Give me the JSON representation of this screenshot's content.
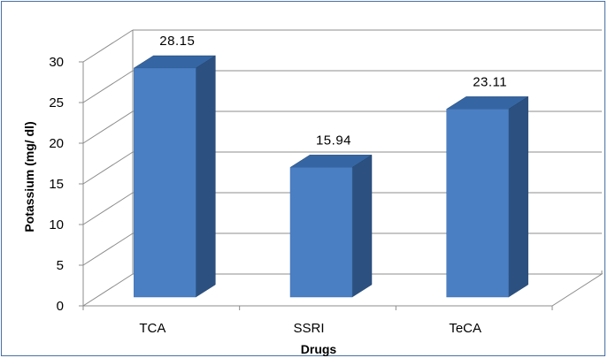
{
  "chart_data": {
    "type": "bar",
    "categories": [
      "TCA",
      "SSRI",
      "TeCA"
    ],
    "series": [
      {
        "values": [
          28.15,
          15.94,
          23.11
        ]
      }
    ],
    "data_labels": [
      "28.15",
      "15.94",
      "23.11"
    ],
    "title": "",
    "xlabel": "Drugs",
    "ylabel": "Potassium (mg/ dl)",
    "ylim": [
      0,
      30
    ],
    "yticks": [
      0,
      5,
      10,
      15,
      20,
      25,
      30
    ],
    "ytick_labels": [
      "0",
      "5",
      "10",
      "15",
      "20",
      "25",
      "30"
    ],
    "grid": true,
    "legend": "none",
    "style": "3d",
    "colors": {
      "bar_front": "#4a7fc4",
      "bar_side": "#2c5180",
      "bar_top": "#3566a3",
      "grid": "#8c8c8c",
      "axis": "#8c8c8c",
      "border": "#4a6fa5"
    }
  }
}
